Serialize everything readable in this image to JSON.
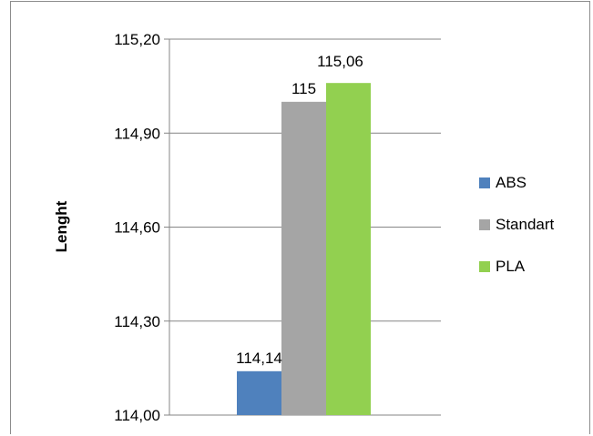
{
  "chart_data": {
    "type": "bar",
    "title": "",
    "xlabel": "",
    "ylabel": "Lenght",
    "ylim": [
      114.0,
      115.2
    ],
    "yticks": [
      "114,00",
      "114,30",
      "114,60",
      "114,90",
      "115,20"
    ],
    "ytick_values": [
      114.0,
      114.3,
      114.6,
      114.9,
      115.2
    ],
    "grid": true,
    "legend_position": "right",
    "series": [
      {
        "name": "ABS",
        "value": 114.14,
        "label": "114,14",
        "color": "#4f81bd"
      },
      {
        "name": "Standart",
        "value": 115.0,
        "label": "115",
        "color": "#a5a5a5"
      },
      {
        "name": "PLA",
        "value": 115.06,
        "label": "115,06",
        "color": "#92d050"
      }
    ]
  }
}
